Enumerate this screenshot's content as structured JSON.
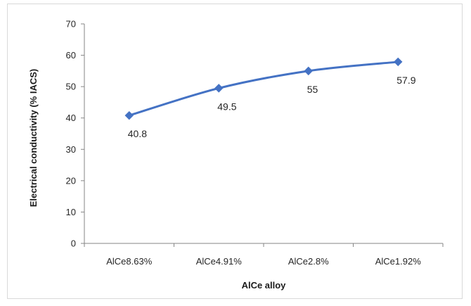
{
  "chart_data": {
    "type": "line",
    "categories": [
      "AlCe8.63%",
      "AlCe4.91%",
      "AlCe2.8%",
      "AlCe1.92%"
    ],
    "series": [
      {
        "values": [
          40.8,
          49.5,
          55,
          57.9
        ],
        "data_labels": [
          "40.8",
          "49.5",
          "55",
          "57.9"
        ]
      }
    ],
    "xlabel": "AlCe alloy",
    "ylabel": "Electrical conductivity (% IACS)",
    "ylim": [
      0,
      70
    ],
    "yticks": [
      0,
      10,
      20,
      30,
      40,
      50,
      60,
      70
    ],
    "grid": false,
    "legend": "none",
    "line_color": "#4472c4",
    "marker": "diamond",
    "smooth": true
  }
}
